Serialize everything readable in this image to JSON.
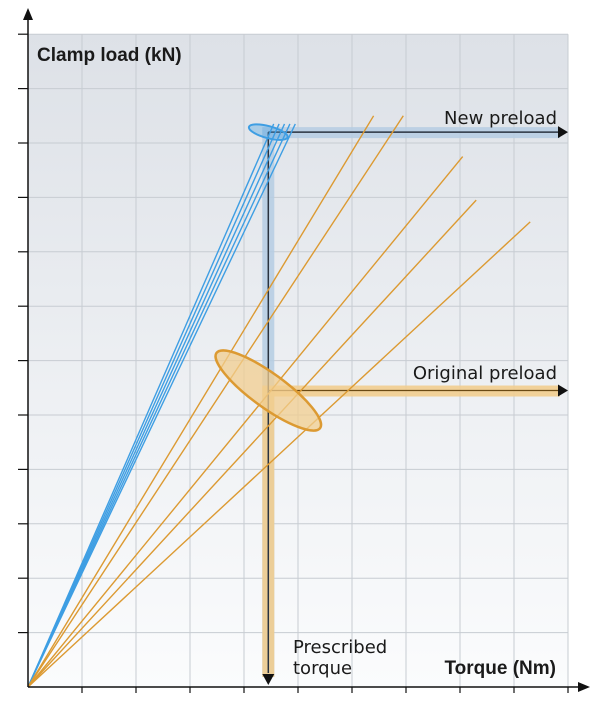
{
  "chart_data": {
    "type": "line",
    "xlabel": "Torque (Nm)",
    "ylabel": "Clamp load (kN)",
    "xlim": [
      0,
      10
    ],
    "ylim": [
      0,
      12
    ],
    "grid": true,
    "annotations": {
      "new_preload": "New preload",
      "original_preload": "Original preload",
      "prescribed_torque_line1": "Prescribed",
      "prescribed_torque_line2": "torque"
    },
    "prescribed_torque_x": 4.45,
    "new_preload_y": 10.2,
    "original_preload_y": 5.45,
    "series": [
      {
        "group": "new",
        "x": [
          0,
          4.55
        ],
        "y": [
          0,
          10.35
        ]
      },
      {
        "group": "new",
        "x": [
          0,
          4.65
        ],
        "y": [
          0,
          10.35
        ]
      },
      {
        "group": "new",
        "x": [
          0,
          4.75
        ],
        "y": [
          0,
          10.35
        ]
      },
      {
        "group": "new",
        "x": [
          0,
          4.85
        ],
        "y": [
          0,
          10.35
        ]
      },
      {
        "group": "new",
        "x": [
          0,
          4.95
        ],
        "y": [
          0,
          10.35
        ]
      },
      {
        "group": "original",
        "x": [
          0,
          6.4
        ],
        "y": [
          0,
          10.5
        ]
      },
      {
        "group": "original",
        "x": [
          0,
          6.95
        ],
        "y": [
          0,
          10.5
        ]
      },
      {
        "group": "original",
        "x": [
          0,
          8.05
        ],
        "y": [
          0,
          9.75
        ]
      },
      {
        "group": "original",
        "x": [
          0,
          8.3
        ],
        "y": [
          0,
          8.95
        ]
      },
      {
        "group": "original",
        "x": [
          0,
          9.3
        ],
        "y": [
          0,
          8.55
        ]
      }
    ],
    "colors": {
      "new": "#3e9ee3",
      "original": "#dc9a32",
      "new_band": "#b5cde3",
      "original_band": "#f1cd8f",
      "grid": "#c7ccd2"
    }
  }
}
